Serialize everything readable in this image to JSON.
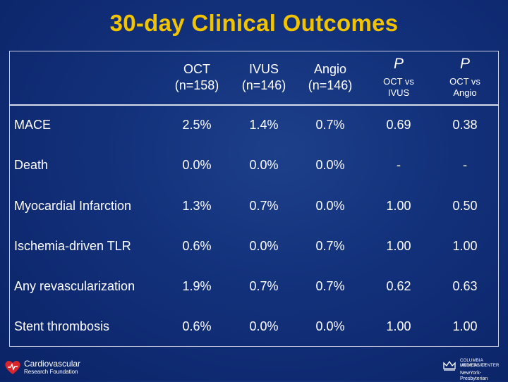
{
  "title": "30-day Clinical Outcomes",
  "columns": [
    {
      "line1": "OCT",
      "line2": "(n=158)"
    },
    {
      "line1": "IVUS",
      "line2": "(n=146)"
    },
    {
      "line1": "Angio",
      "line2": "(n=146)"
    },
    {
      "p": "P",
      "line1": "OCT vs",
      "line2": "IVUS"
    },
    {
      "p": "P",
      "line1": "OCT vs",
      "line2": "Angio"
    }
  ],
  "rows": [
    {
      "label": "MACE",
      "cells": [
        "2.5%",
        "1.4%",
        "0.7%",
        "0.69",
        "0.38"
      ]
    },
    {
      "label": "Death",
      "cells": [
        "0.0%",
        "0.0%",
        "0.0%",
        "-",
        "-"
      ]
    },
    {
      "label": "Myocardial Infarction",
      "cells": [
        "1.3%",
        "0.7%",
        "0.0%",
        "1.00",
        "0.50"
      ]
    },
    {
      "label": "Ischemia-driven TLR",
      "cells": [
        "0.6%",
        "0.0%",
        "0.7%",
        "1.00",
        "1.00"
      ]
    },
    {
      "label": "Any revascularization",
      "cells": [
        "1.9%",
        "0.7%",
        "0.7%",
        "0.62",
        "0.63"
      ]
    },
    {
      "label": "Stent thrombosis",
      "cells": [
        "0.6%",
        "0.0%",
        "0.0%",
        "1.00",
        "1.00"
      ]
    }
  ],
  "footer": {
    "left_logo_line1": "Cardiovascular",
    "left_logo_line2": "Research Foundation",
    "right_logo_line1": "COLUMBIA UNIVERSITY",
    "right_logo_line2": "MEDICAL CENTER",
    "right_logo_line3": "NewYork-Presbyterian"
  },
  "colors": {
    "background": "#12307a",
    "title": "#f2c300",
    "text": "#ffffff",
    "logo_heart": "#d9252b"
  }
}
